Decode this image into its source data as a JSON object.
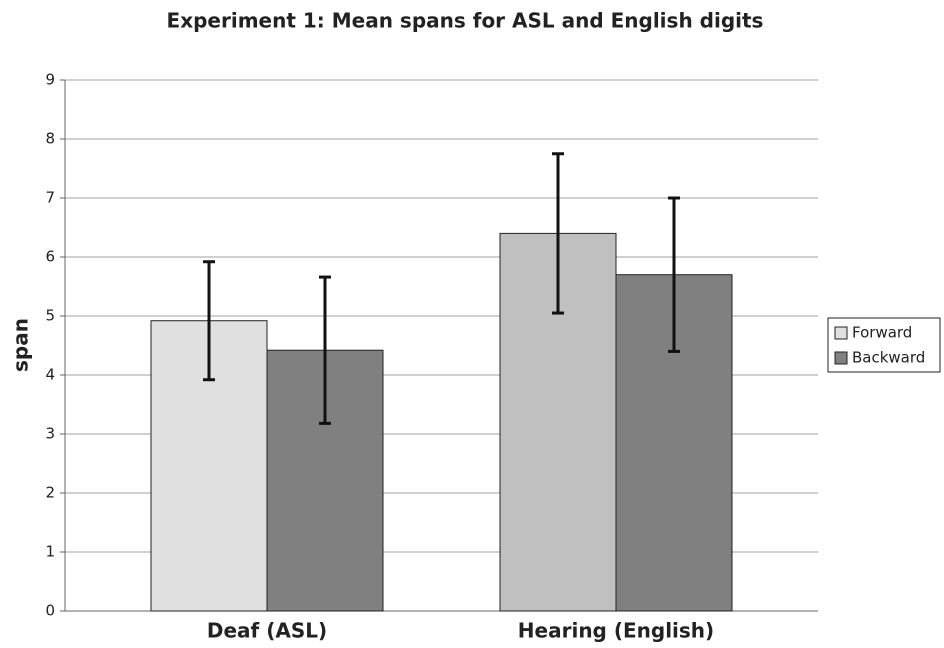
{
  "chart_data": {
    "type": "bar",
    "title": "Experiment 1: Mean spans for ASL and English digits",
    "y_label": "span",
    "categories": [
      "Deaf (ASL)",
      "Hearing (English)"
    ],
    "series": [
      {
        "name": "Forward",
        "color": "#e0e0e0",
        "colors": [
          "#e0e0e0",
          "#c0c0c0"
        ],
        "values": [
          4.92,
          6.4
        ],
        "errors": [
          1.0,
          1.35
        ]
      },
      {
        "name": "Backward",
        "color": "#808080",
        "colors": [
          "#808080",
          "#808080"
        ],
        "values": [
          4.42,
          5.7
        ],
        "errors": [
          1.24,
          1.3
        ]
      }
    ],
    "ylim": [
      0,
      9
    ],
    "yticks": [
      0,
      1,
      2,
      3,
      4,
      5,
      6,
      7,
      8,
      9
    ],
    "grid": true,
    "legend": "right"
  }
}
